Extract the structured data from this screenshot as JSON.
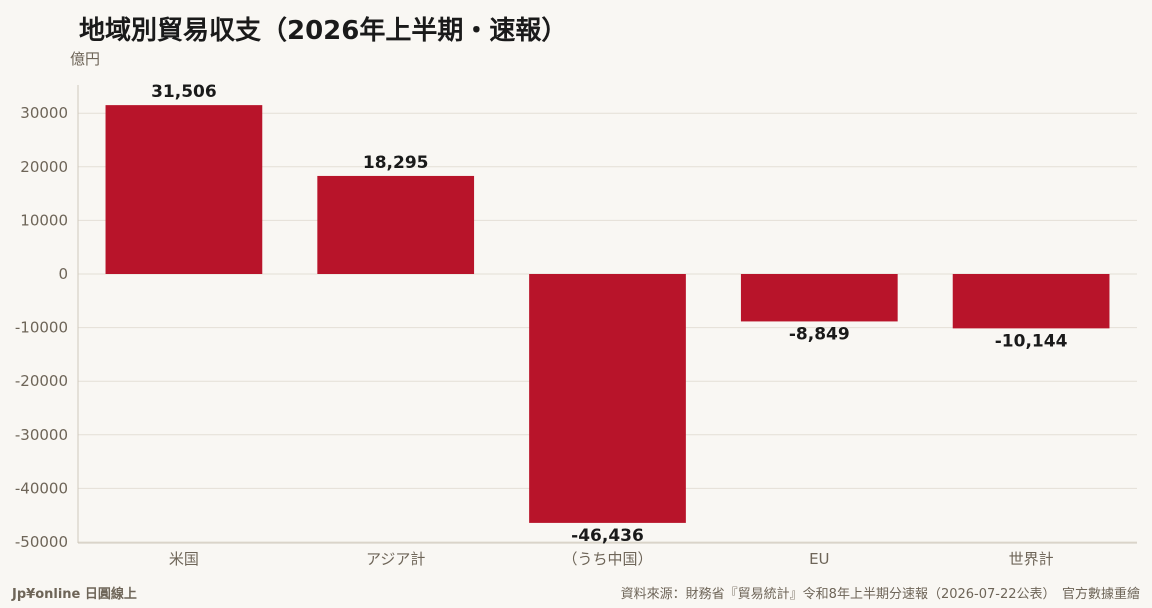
{
  "title": "地域別貿易収支（2026年上半期・速報）",
  "unit_label": "億円",
  "colors": {
    "bar": "#b8142a",
    "grid": "#e4dfd6",
    "axis": "#cfc8bc",
    "text": "#6e6558",
    "background": "#f9f7f3"
  },
  "chart_data": {
    "type": "bar",
    "categories": [
      "米国",
      "アジア計",
      "（うち中国）",
      "EU",
      "世界計"
    ],
    "values": [
      31506,
      18295,
      -46436,
      -8849,
      -10144
    ],
    "value_labels": [
      "31,506",
      "18,295",
      "-46,436",
      "-8,849",
      "-10,144"
    ],
    "title": "地域別貿易収支（2026年上半期・速報）",
    "ylabel": "億円",
    "xlabel": "",
    "ylim": [
      -50000,
      35000
    ],
    "yticks": [
      30000,
      20000,
      10000,
      0,
      -10000,
      -20000,
      -30000,
      -40000,
      -50000
    ],
    "ytick_labels": [
      "30000",
      "20000",
      "10000",
      "0",
      "-10000",
      "-20000",
      "-30000",
      "-40000",
      "-50000"
    ],
    "grid": true,
    "legend": "none"
  },
  "footer": {
    "brand": "Jp¥online 日圓線上",
    "source": "資料來源：財務省『貿易統計』令和8年上半期分速報（2026-07-22公表）　官方數據重繪"
  }
}
